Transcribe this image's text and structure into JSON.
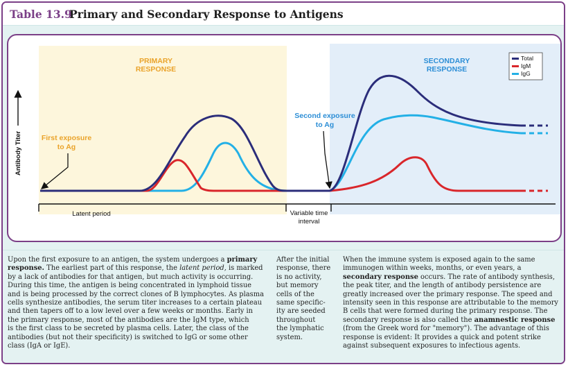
{
  "table_label": "Table 13.9",
  "title": "Primary and Secondary Response to Antigens",
  "figure": {
    "primary_label": [
      "PRIMARY",
      "RESPONSE"
    ],
    "secondary_label": [
      "SECONDARY",
      "RESPONSE"
    ],
    "y_axis_label": "Antibody Titer",
    "first_exposure": [
      "First exposure",
      "to Ag"
    ],
    "second_exposure": [
      "Second exposure",
      "to Ag"
    ],
    "latent_period": "Latent period",
    "variable_interval": [
      "Variable time",
      "interval"
    ],
    "legend": [
      {
        "label": "Total",
        "color": "#2b2d7a"
      },
      {
        "label": "IgM",
        "color": "#d9262b"
      },
      {
        "label": "IgG",
        "color": "#23b0e6"
      }
    ],
    "colors": {
      "primary_bg": "#fdf6dc",
      "secondary_bg": "#e3eef9",
      "primary_text": "#eaa32a",
      "secondary_text": "#2c8ed6",
      "frame": "#7b3f87"
    }
  },
  "col1": {
    "p1": "Upon the first exposure to an antigen, the system undergoes a ",
    "t1": "primary",
    "l2": "response.",
    "p2": " The earliest part of this response, the ",
    "t2": "latent period,",
    "p3": " is marked",
    "lines": [
      "by a lack of antibodies for that antigen, but much activity is occurring.",
      "During this time, the antigen is being concentrated in lymphoid tissue",
      "and is being processed by the correct clones of B lymphocytes. As plasma",
      "cells synthesize antibodies, the serum titer increases to a certain plateau",
      "and then tapers off to a low level over a few weeks or months. Early in",
      "the primary response, most of the antibodies are the IgM type, which",
      "is the first class to be secreted by plasma cells. Later, the class of the",
      "antibodies (but not their specificity) is switched to IgG or some other",
      "class (IgA or IgE)."
    ]
  },
  "col2": {
    "lines": [
      "After the initial",
      "response, there",
      "is no activity,",
      "but memory",
      "cells of the",
      "same specific-",
      "ity are seeded",
      "throughout",
      "the lymphatic",
      "system."
    ]
  },
  "col3": {
    "l1": "When the immune system is exposed again to the same",
    "l2": "immunogen within weeks, months, or even years, a",
    "l3b": "secondary response",
    "l3": " occurs. The rate of antibody synthesis,",
    "lines_mid": [
      "the peak titer, and the length of antibody persistence are",
      "greatly increased over the primary response. The speed and",
      "intensity seen in this response are attributable to the memory",
      "B cells that were formed during the primary response. The"
    ],
    "l8": "secondary response is also called the ",
    "l8b": "anamnestic response",
    "lines_end": [
      "(from the Greek word for \"memory\"). The advantage of this",
      "response is evident: It provides a quick and potent strike",
      "against subsequent exposures to infectious agents."
    ]
  }
}
